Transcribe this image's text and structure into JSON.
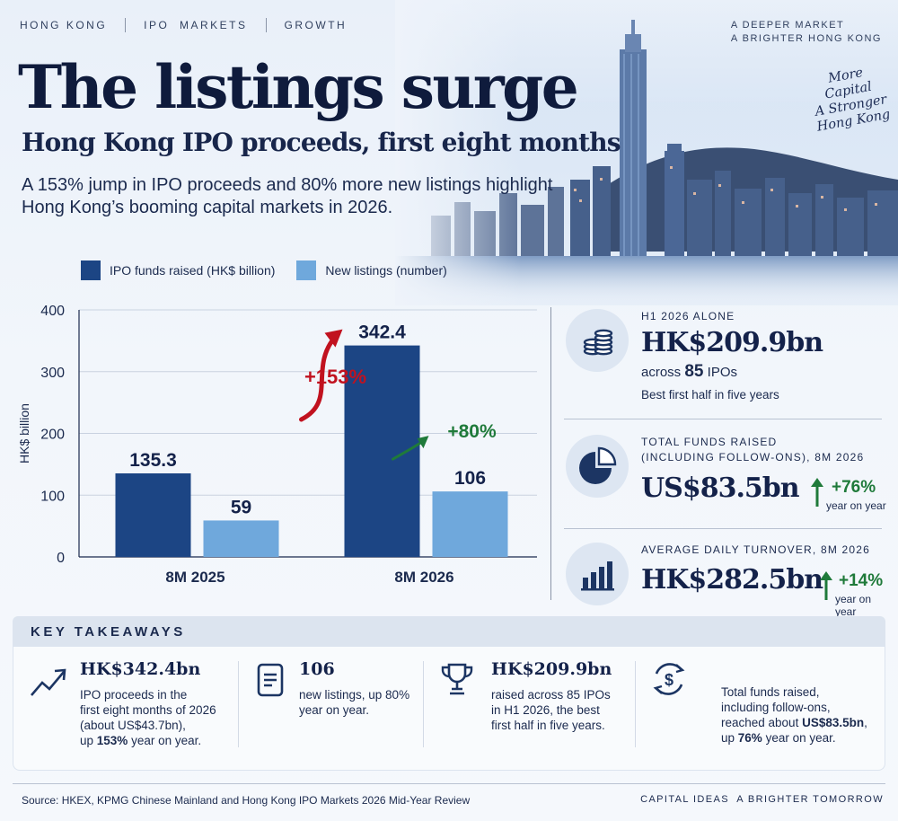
{
  "header": {
    "nav": [
      "HONG KONG",
      "IPO  MARKETS",
      "GROWTH"
    ],
    "tagline": [
      "A DEEPER MARKET",
      "A BRIGHTER HONG KONG"
    ],
    "handwritten": [
      "More",
      "Capital",
      "A Stronger",
      "Hong Kong"
    ],
    "title": "The listings surge",
    "subtitle": "Hong Kong IPO proceeds, first eight months",
    "lead": "A 153% jump in IPO proceeds and 80% more new listings highlight Hong Kong’s booming capital markets in 2026."
  },
  "colors": {
    "funds": "#1c4584",
    "listings": "#6fa8dc",
    "up_red": "#c1121f",
    "up_green": "#1f7a3a",
    "navy": "#14224a"
  },
  "chart_data": {
    "type": "bar",
    "categories": [
      "8M 2025",
      "8M 2026"
    ],
    "series": [
      {
        "name": "IPO funds raised (HK$ billion)",
        "values": [
          135.3,
          342.4
        ],
        "labels": [
          "135.3",
          "342.4"
        ]
      },
      {
        "name": "New listings (number)",
        "values": [
          59,
          106
        ],
        "labels": [
          "59",
          "106"
        ]
      }
    ],
    "ylabel": "HK$ billion",
    "ylim": [
      0,
      400
    ],
    "yticks": [
      0,
      100,
      200,
      300,
      400
    ],
    "grid": true,
    "legend": "top",
    "annotations": [
      {
        "text": "+153%",
        "series": "IPO funds raised (HK$ billion)"
      },
      {
        "text": "+80%",
        "series": "New listings (number)"
      }
    ]
  },
  "stats": [
    {
      "icon": "coins-icon",
      "label": "H1 2026 ALONE",
      "value": "HK$209.9bn",
      "sub_prefix": "across ",
      "sub_num": "85",
      "sub_suffix": " IPOs",
      "note": "Best first half in five years"
    },
    {
      "icon": "pie-chart-icon",
      "label_lines": [
        "TOTAL FUNDS RAISED",
        "(INCLUDING FOLLOW-ONS), 8M 2026"
      ],
      "value": "US$83.5bn",
      "change": "+76%",
      "change_note": "year on year"
    },
    {
      "icon": "bar-chart-icon",
      "label": "AVERAGE DAILY TURNOVER, 8M 2026",
      "value": "HK$282.5bn",
      "change": "+14%",
      "change_note": "year on year"
    }
  ],
  "takeaways": {
    "heading": "KEY TAKEAWAYS",
    "items": [
      {
        "icon": "trend-up-icon",
        "head": "HK$342.4bn",
        "lines": [
          "IPO proceeds in the",
          "first eight months of 2026",
          "(about US$43.7bn),"
        ],
        "last_prefix": "up ",
        "last_bold": "153%",
        "last_suffix": " year on year."
      },
      {
        "icon": "document-icon",
        "head": "106",
        "lines": [
          "new listings, up 80%",
          "year on year."
        ]
      },
      {
        "icon": "trophy-icon",
        "head": "HK$209.9bn",
        "lines": [
          "raised across 85 IPOs",
          "in H1 2026, the best",
          "first half in five years."
        ]
      },
      {
        "icon": "money-cycle-icon",
        "lines": [
          "Total funds raised,",
          "including follow-ons,"
        ],
        "line3_prefix": "reached about ",
        "line3_bold": "US$83.5bn",
        "line3_suffix": ",",
        "last_prefix": "up ",
        "last_bold": "76%",
        "last_suffix": " year on year."
      }
    ]
  },
  "footer": {
    "source": "Source: HKEX, KPMG Chinese Mainland and Hong Kong IPO Markets 2026 Mid-Year Review",
    "brand": "CAPITAL IDEAS  A BRIGHTER TOMORROW"
  }
}
